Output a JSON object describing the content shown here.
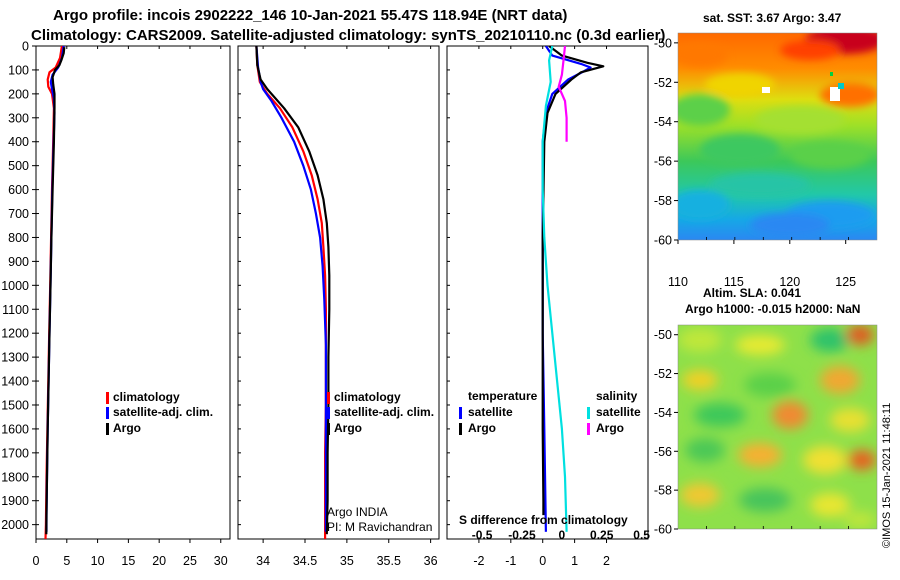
{
  "header": {
    "line1": "Argo profile: incois 2902222_146 10-Jan-2021 55.47S 118.94E (NRT data)",
    "line2": "Climatology: CARS2009. Satellite-adjusted climatology: synTS_20210110.nc (0.3d earlier)"
  },
  "credit": {
    "line1": "Argo INDIA",
    "line2": "PI: M Ravichandran",
    "stamp": "©IMOS 15-Jan-2021 11:48:11"
  },
  "colors": {
    "climatology": "#ff0000",
    "satellite": "#0000ff",
    "argo": "#000000",
    "temp_sat": "#0000ff",
    "sal_sat": "#00e0e0",
    "sal_argo": "#ff00ff"
  },
  "chart_data": [
    {
      "type": "line",
      "name": "temperature-profile",
      "xlabel": "",
      "ylabel": "",
      "xlim": [
        0,
        31.5
      ],
      "ylim": [
        2060,
        0
      ],
      "x_ticks": [
        "0",
        "5",
        "10",
        "15",
        "20",
        "25",
        "30"
      ],
      "x_tick_values": [
        0,
        5,
        10,
        15,
        20,
        25,
        30
      ],
      "y_ticks": [
        "0",
        "100",
        "200",
        "300",
        "400",
        "500",
        "600",
        "700",
        "800",
        "900",
        "1000",
        "1100",
        "1200",
        "1300",
        "1400",
        "1500",
        "1600",
        "1700",
        "1800",
        "1900",
        "2000"
      ],
      "y_tick_values": [
        0,
        100,
        200,
        300,
        400,
        500,
        600,
        700,
        800,
        900,
        1000,
        1100,
        1200,
        1300,
        1400,
        1500,
        1600,
        1700,
        1800,
        1900,
        2000
      ],
      "legend": [
        "climatology",
        "satellite-adj. clim.",
        "Argo"
      ],
      "series": [
        {
          "name": "climatology",
          "color": "#ff0000",
          "points": [
            [
              4.2,
              0
            ],
            [
              3.9,
              50
            ],
            [
              3.2,
              90
            ],
            [
              2.2,
              110
            ],
            [
              1.9,
              140
            ],
            [
              2.0,
              170
            ],
            [
              2.6,
              200
            ],
            [
              2.9,
              260
            ],
            [
              2.8,
              400
            ],
            [
              2.6,
              600
            ],
            [
              2.45,
              800
            ],
            [
              2.3,
              1000
            ],
            [
              2.15,
              1200
            ],
            [
              2.0,
              1400
            ],
            [
              1.85,
              1600
            ],
            [
              1.7,
              1800
            ],
            [
              1.6,
              2000
            ],
            [
              1.55,
              2060
            ]
          ]
        },
        {
          "name": "satellite-adj. clim.",
          "color": "#0000ff",
          "points": [
            [
              4.5,
              0
            ],
            [
              4.2,
              50
            ],
            [
              3.6,
              90
            ],
            [
              2.7,
              120
            ],
            [
              2.4,
              150
            ],
            [
              2.6,
              180
            ],
            [
              2.9,
              220
            ],
            [
              3.0,
              280
            ],
            [
              2.85,
              400
            ],
            [
              2.65,
              600
            ],
            [
              2.5,
              800
            ],
            [
              2.35,
              1000
            ],
            [
              2.2,
              1200
            ],
            [
              2.05,
              1400
            ],
            [
              1.9,
              1600
            ],
            [
              1.78,
              1800
            ],
            [
              1.7,
              1960
            ],
            [
              1.7,
              2030
            ]
          ]
        },
        {
          "name": "Argo",
          "color": "#000000",
          "points": [
            [
              4.6,
              5
            ],
            [
              4.5,
              30
            ],
            [
              4.1,
              60
            ],
            [
              3.8,
              80
            ],
            [
              3.1,
              100
            ],
            [
              2.7,
              130
            ],
            [
              2.8,
              160
            ],
            [
              3.0,
              200
            ],
            [
              3.0,
              260
            ],
            [
              2.9,
              400
            ],
            [
              2.7,
              600
            ],
            [
              2.5,
              800
            ],
            [
              2.35,
              1000
            ],
            [
              2.2,
              1200
            ],
            [
              2.05,
              1400
            ],
            [
              1.9,
              1600
            ],
            [
              1.78,
              1800
            ],
            [
              1.7,
              1950
            ],
            [
              1.68,
              2040
            ]
          ]
        }
      ]
    },
    {
      "type": "line",
      "name": "salinity-profile",
      "xlim": [
        33.7,
        36.1
      ],
      "ylim": [
        2060,
        0
      ],
      "x_ticks": [
        "34",
        "34.5",
        "35",
        "35.5",
        "36"
      ],
      "x_tick_values": [
        34,
        34.5,
        35,
        35.5,
        36
      ],
      "legend": [
        "climatology",
        "satellite-adj. clim.",
        "Argo"
      ],
      "series": [
        {
          "name": "climatology",
          "color": "#ff0000",
          "points": [
            [
              33.92,
              0
            ],
            [
              33.93,
              80
            ],
            [
              33.96,
              150
            ],
            [
              34.05,
              200
            ],
            [
              34.2,
              260
            ],
            [
              34.35,
              340
            ],
            [
              34.48,
              440
            ],
            [
              34.58,
              540
            ],
            [
              34.65,
              640
            ],
            [
              34.7,
              740
            ],
            [
              34.72,
              840
            ],
            [
              34.74,
              960
            ],
            [
              34.75,
              1100
            ],
            [
              34.75,
              1300
            ],
            [
              34.75,
              1500
            ],
            [
              34.74,
              1700
            ],
            [
              34.74,
              1900
            ],
            [
              34.74,
              2060
            ]
          ]
        },
        {
          "name": "satellite-adj. clim.",
          "color": "#0000ff",
          "points": [
            [
              33.92,
              0
            ],
            [
              33.94,
              90
            ],
            [
              33.97,
              150
            ],
            [
              34.0,
              180
            ],
            [
              34.1,
              230
            ],
            [
              34.22,
              300
            ],
            [
              34.37,
              400
            ],
            [
              34.48,
              500
            ],
            [
              34.57,
              600
            ],
            [
              34.63,
              700
            ],
            [
              34.68,
              800
            ],
            [
              34.71,
              920
            ],
            [
              34.73,
              1060
            ],
            [
              34.75,
              1250
            ],
            [
              34.75,
              1450
            ],
            [
              34.75,
              1650
            ],
            [
              34.75,
              1850
            ],
            [
              34.75,
              2030
            ]
          ]
        },
        {
          "name": "Argo",
          "color": "#000000",
          "points": [
            [
              33.92,
              0
            ],
            [
              33.93,
              80
            ],
            [
              33.97,
              140
            ],
            [
              34.05,
              180
            ],
            [
              34.25,
              260
            ],
            [
              34.42,
              340
            ],
            [
              34.55,
              440
            ],
            [
              34.65,
              540
            ],
            [
              34.72,
              640
            ],
            [
              34.76,
              740
            ],
            [
              34.78,
              840
            ],
            [
              34.79,
              960
            ],
            [
              34.79,
              1100
            ],
            [
              34.78,
              1300
            ],
            [
              34.78,
              1500
            ],
            [
              34.77,
              1700
            ],
            [
              34.77,
              1900
            ],
            [
              34.76,
              2040
            ]
          ]
        }
      ]
    },
    {
      "type": "line",
      "name": "difference-from-climatology",
      "xlim": [
        -3.0,
        3.3
      ],
      "ylim": [
        2060,
        0
      ],
      "x_ticks": [
        "-2",
        "-1",
        "0",
        "1",
        "2"
      ],
      "x_tick_values": [
        -2,
        -1,
        0,
        1,
        2
      ],
      "secondary_x_label": "S difference from climatology",
      "secondary_x_ticks": [
        "-0.5",
        "-0.25",
        "0",
        "0.25",
        "0.5"
      ],
      "secondary_x_tick_values": [
        -0.5,
        -0.25,
        0,
        0.25,
        0.5
      ],
      "legend_groups": [
        {
          "title": "temperature",
          "entries": [
            "satellite",
            "Argo"
          ]
        },
        {
          "title": "salinity",
          "entries": [
            "satellite",
            "Argo"
          ]
        }
      ],
      "series": [
        {
          "name": "temperature satellite",
          "color": "#0000ff",
          "points": [
            [
              0.1,
              0
            ],
            [
              0.3,
              40
            ],
            [
              1.2,
              75
            ],
            [
              1.5,
              90
            ],
            [
              1.3,
              105
            ],
            [
              0.8,
              140
            ],
            [
              0.3,
              200
            ],
            [
              0.1,
              280
            ],
            [
              0.0,
              400
            ],
            [
              0.0,
              800
            ],
            [
              0.0,
              1200
            ],
            [
              0.05,
              1600
            ],
            [
              0.1,
              2030
            ]
          ]
        },
        {
          "name": "temperature Argo",
          "color": "#000000",
          "points": [
            [
              0.2,
              0
            ],
            [
              0.6,
              40
            ],
            [
              1.4,
              70
            ],
            [
              1.9,
              85
            ],
            [
              1.2,
              110
            ],
            [
              0.9,
              140
            ],
            [
              0.4,
              200
            ],
            [
              0.15,
              280
            ],
            [
              0.05,
              400
            ],
            [
              0.0,
              800
            ],
            [
              0.0,
              1200
            ],
            [
              0.0,
              1600
            ],
            [
              0.02,
              1900
            ],
            [
              0.02,
              1960
            ]
          ]
        },
        {
          "name": "salinity satellite",
          "color": "#00e0e0",
          "points": [
            [
              -0.06,
              0
            ],
            [
              -0.08,
              60
            ],
            [
              -0.07,
              150
            ],
            [
              -0.1,
              250
            ],
            [
              -0.12,
              400
            ],
            [
              -0.12,
              600
            ],
            [
              -0.11,
              800
            ],
            [
              -0.09,
              1000
            ],
            [
              -0.06,
              1200
            ],
            [
              -0.03,
              1400
            ],
            [
              0.0,
              1600
            ],
            [
              0.02,
              1800
            ],
            [
              0.03,
              2030
            ]
          ]
        },
        {
          "name": "salinity Argo",
          "color": "#ff00ff",
          "points": [
            [
              0.02,
              0
            ],
            [
              0.01,
              60
            ],
            [
              0.0,
              120
            ],
            [
              -0.02,
              170
            ],
            [
              0.02,
              230
            ],
            [
              0.03,
              300
            ],
            [
              0.03,
              400
            ]
          ]
        }
      ]
    },
    {
      "type": "heatmap",
      "name": "sst-map",
      "title": "sat. SST: 3.67 Argo: 3.47",
      "y_ticks": [
        "-50",
        "-52",
        "-54",
        "-56",
        "-58",
        "-60"
      ],
      "y_tick_values": [
        -50,
        -52,
        -54,
        -56,
        -58,
        -60
      ],
      "x_ticks": [
        "110",
        "115",
        "120",
        "125"
      ],
      "x_tick_values": [
        110,
        115,
        120,
        125
      ],
      "ylim": [
        -60,
        -49.5
      ],
      "xlim": [
        110,
        127.8
      ]
    },
    {
      "type": "heatmap",
      "name": "sla-map",
      "title_line1": "Altim. SLA: 0.041",
      "title_line2": "Argo h1000: -0.015 h2000: NaN",
      "y_ticks": [
        "-50",
        "-52",
        "-54",
        "-56",
        "-58",
        "-60"
      ],
      "y_tick_values": [
        -50,
        -52,
        -54,
        -56,
        -58,
        -60
      ],
      "ylim": [
        -60,
        -49.5
      ],
      "xlim": [
        110,
        127.8
      ]
    }
  ]
}
